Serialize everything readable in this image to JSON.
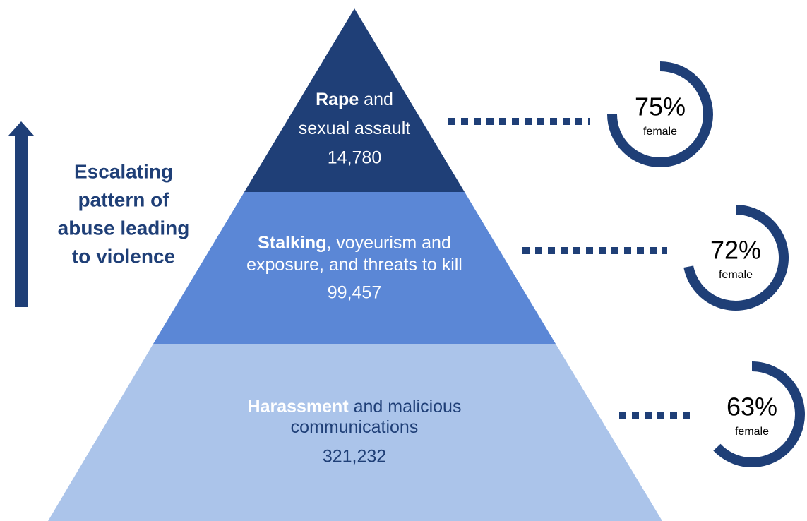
{
  "side_label": {
    "lines": [
      "Escalating",
      "pattern of",
      "abuse leading",
      "to violence"
    ]
  },
  "levels": [
    {
      "lines": [
        {
          "bold": "Rape",
          "rest": " and"
        },
        {
          "bold": "",
          "rest": "sexual assault"
        }
      ],
      "count": "14,780",
      "percent": 75,
      "percent_label": "75%",
      "sub": "female"
    },
    {
      "lines": [
        {
          "bold": "Stalking",
          "rest": ", voyeurism and"
        },
        {
          "bold": "",
          "rest": "exposure, and threats to kill"
        }
      ],
      "count": "99,457",
      "percent": 72,
      "percent_label": "72%",
      "sub": "female"
    },
    {
      "lines": [
        {
          "bold": "Harassment",
          "rest": " and malicious"
        },
        {
          "bold": "",
          "rest": "communications"
        }
      ],
      "count": "321,232",
      "percent": 63,
      "percent_label": "63%",
      "sub": "female"
    }
  ]
}
